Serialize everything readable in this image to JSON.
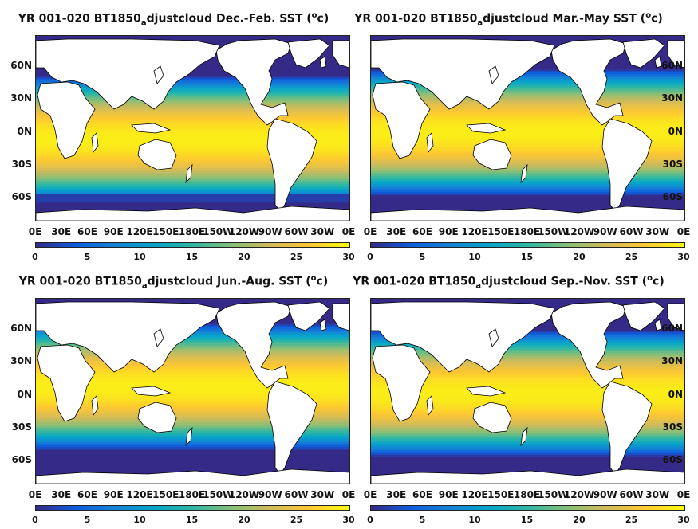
{
  "colorbar": {
    "ticks": [
      "0",
      "5",
      "10",
      "15",
      "20",
      "25",
      "30"
    ],
    "range": [
      0,
      30
    ],
    "colormap": [
      "#352a87",
      "#0f5cdd",
      "#1481d6",
      "#06a4ca",
      "#2eb7a4",
      "#87bf77",
      "#d1bb59",
      "#fec832",
      "#f9fb0e"
    ]
  },
  "lat_labels": [
    "60N",
    "30N",
    "0N",
    "30S",
    "60S"
  ],
  "lon_labels": [
    "0E",
    "30E",
    "60E",
    "90E",
    "120E",
    "150E",
    "180E",
    "150W",
    "120W",
    "90W",
    "60W",
    "30W",
    "0E"
  ],
  "panels": [
    {
      "title_main": "YR 001-020 BT1850",
      "title_sub": "a",
      "title_rest": "djustcloud Dec.-Feb. SST (",
      "title_sup": "o",
      "title_end": "c)",
      "season": "DJF"
    },
    {
      "title_main": "YR 001-020 BT1850",
      "title_sub": "a",
      "title_rest": "djustcloud Mar.-May SST (",
      "title_sup": "o",
      "title_end": "c)",
      "season": "MAM"
    },
    {
      "title_main": "YR 001-020 BT1850",
      "title_sub": "a",
      "title_rest": "djustcloud Jun.-Aug. SST (",
      "title_sup": "o",
      "title_end": "c)",
      "season": "JJA"
    },
    {
      "title_main": "YR 001-020 BT1850",
      "title_sub": "a",
      "title_rest": "djustcloud Sep.-Nov. SST (",
      "title_sup": "o",
      "title_end": "c)",
      "season": "SON"
    }
  ]
}
